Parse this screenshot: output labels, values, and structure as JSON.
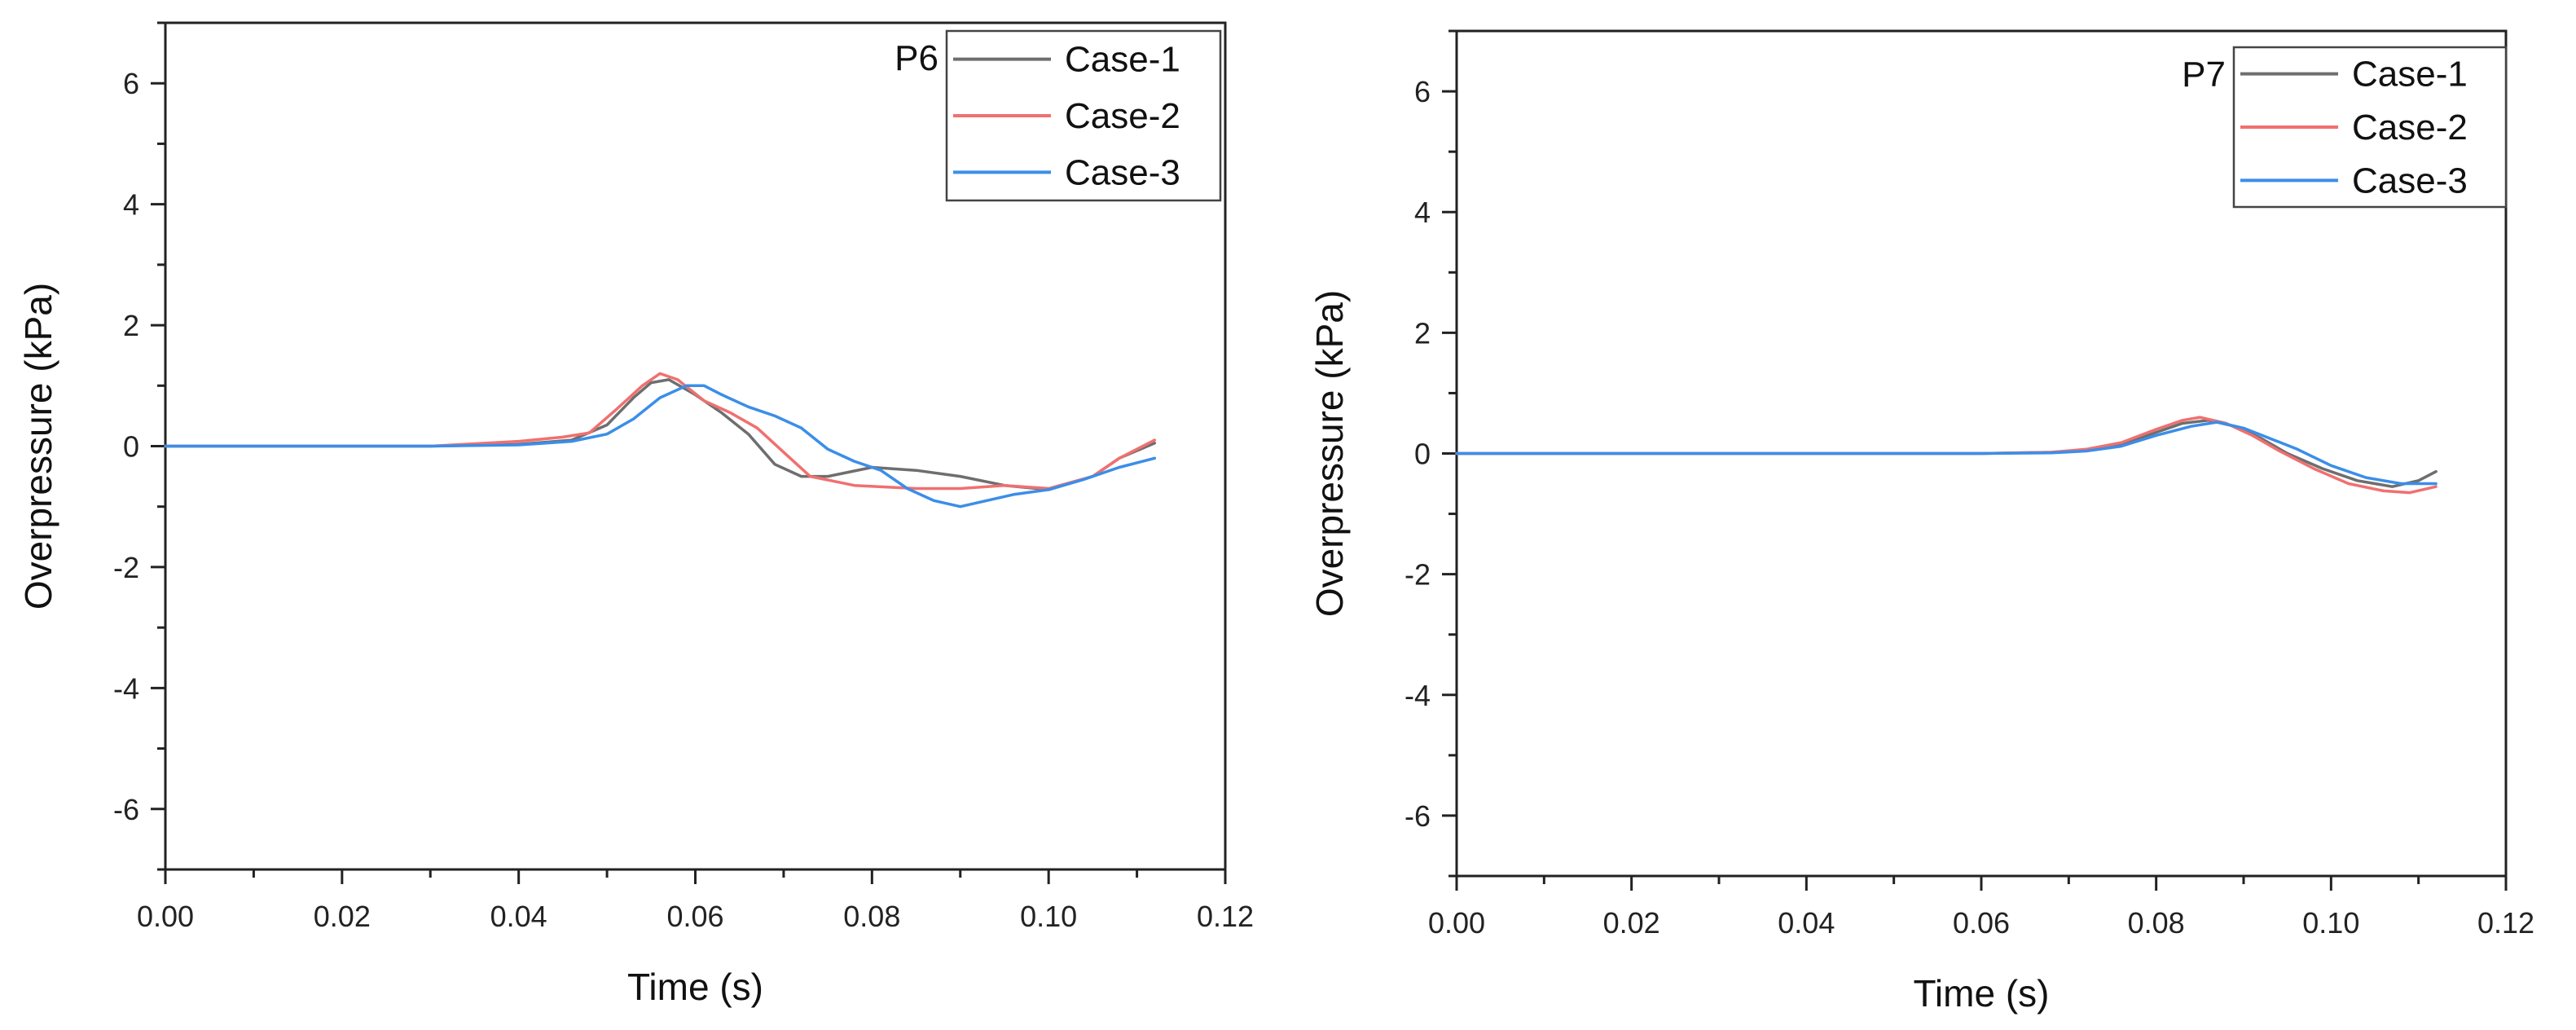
{
  "chart_data": [
    {
      "type": "line",
      "panel": "P6",
      "xlabel": "Time (s)",
      "ylabel": "Overpressure (kPa)",
      "xlim": [
        0,
        0.12
      ],
      "ylim": [
        -7,
        7
      ],
      "xticks": [
        "0.00",
        "0.02",
        "0.04",
        "0.06",
        "0.08",
        "0.10",
        "0.12"
      ],
      "yticks": [
        "6",
        "4",
        "2",
        "0",
        "-2",
        "-4",
        "-6"
      ],
      "xtick_values": [
        0,
        0.02,
        0.04,
        0.06,
        0.08,
        0.1,
        0.12
      ],
      "ytick_values": [
        6,
        4,
        2,
        0,
        -2,
        -4,
        -6
      ],
      "series": [
        {
          "name": "Case-1",
          "color": "#6e6e6e",
          "x": [
            0,
            0.03,
            0.04,
            0.046,
            0.05,
            0.053,
            0.055,
            0.057,
            0.06,
            0.063,
            0.066,
            0.069,
            0.072,
            0.075,
            0.08,
            0.085,
            0.09,
            0.095,
            0.1,
            0.105,
            0.108,
            0.112
          ],
          "y": [
            0,
            0,
            0.03,
            0.1,
            0.35,
            0.8,
            1.05,
            1.1,
            0.85,
            0.55,
            0.2,
            -0.3,
            -0.5,
            -0.5,
            -0.35,
            -0.4,
            -0.5,
            -0.65,
            -0.72,
            -0.5,
            -0.2,
            0.05
          ]
        },
        {
          "name": "Case-2",
          "color": "#f07070",
          "x": [
            0,
            0.03,
            0.04,
            0.045,
            0.048,
            0.051,
            0.054,
            0.056,
            0.058,
            0.061,
            0.064,
            0.067,
            0.07,
            0.073,
            0.078,
            0.085,
            0.09,
            0.095,
            0.1,
            0.105,
            0.108,
            0.112
          ],
          "y": [
            0,
            0,
            0.08,
            0.15,
            0.22,
            0.6,
            1.0,
            1.2,
            1.1,
            0.75,
            0.55,
            0.3,
            -0.1,
            -0.5,
            -0.65,
            -0.7,
            -0.7,
            -0.65,
            -0.7,
            -0.5,
            -0.2,
            0.1
          ]
        },
        {
          "name": "Case-3",
          "color": "#3b8ee8",
          "x": [
            0,
            0.03,
            0.04,
            0.046,
            0.05,
            0.053,
            0.056,
            0.059,
            0.061,
            0.063,
            0.066,
            0.069,
            0.072,
            0.075,
            0.078,
            0.081,
            0.084,
            0.087,
            0.09,
            0.093,
            0.096,
            0.1,
            0.104,
            0.108,
            0.112
          ],
          "y": [
            0,
            0,
            0.02,
            0.08,
            0.2,
            0.45,
            0.8,
            1.0,
            1.0,
            0.85,
            0.65,
            0.5,
            0.3,
            -0.05,
            -0.25,
            -0.4,
            -0.7,
            -0.9,
            -1.0,
            -0.9,
            -0.8,
            -0.72,
            -0.55,
            -0.35,
            -0.2
          ]
        }
      ]
    },
    {
      "type": "line",
      "panel": "P7",
      "xlabel": "Time (s)",
      "ylabel": "Overpressure (kPa)",
      "xlim": [
        0,
        0.12
      ],
      "ylim": [
        -7,
        7
      ],
      "xticks": [
        "0.00",
        "0.02",
        "0.04",
        "0.06",
        "0.08",
        "0.10",
        "0.12"
      ],
      "yticks": [
        "6",
        "4",
        "2",
        "0",
        "-2",
        "-4",
        "-6"
      ],
      "xtick_values": [
        0,
        0.02,
        0.04,
        0.06,
        0.08,
        0.1,
        0.12
      ],
      "ytick_values": [
        6,
        4,
        2,
        0,
        -2,
        -4,
        -6
      ],
      "series": [
        {
          "name": "Case-1",
          "color": "#6e6e6e",
          "x": [
            0,
            0.05,
            0.06,
            0.068,
            0.072,
            0.076,
            0.08,
            0.083,
            0.086,
            0.089,
            0.092,
            0.095,
            0.099,
            0.103,
            0.107,
            0.11,
            0.112
          ],
          "y": [
            0,
            0,
            0,
            0.02,
            0.06,
            0.15,
            0.35,
            0.5,
            0.55,
            0.45,
            0.25,
            0.0,
            -0.25,
            -0.45,
            -0.55,
            -0.45,
            -0.3
          ]
        },
        {
          "name": "Case-2",
          "color": "#f07070",
          "x": [
            0,
            0.05,
            0.06,
            0.068,
            0.072,
            0.076,
            0.08,
            0.083,
            0.085,
            0.088,
            0.091,
            0.094,
            0.098,
            0.102,
            0.106,
            0.109,
            0.112
          ],
          "y": [
            0,
            0,
            0,
            0.02,
            0.07,
            0.18,
            0.4,
            0.55,
            0.6,
            0.5,
            0.3,
            0.05,
            -0.25,
            -0.5,
            -0.62,
            -0.65,
            -0.55
          ]
        },
        {
          "name": "Case-3",
          "color": "#3b8ee8",
          "x": [
            0,
            0.05,
            0.06,
            0.068,
            0.072,
            0.076,
            0.08,
            0.084,
            0.087,
            0.09,
            0.093,
            0.096,
            0.1,
            0.104,
            0.108,
            0.112
          ],
          "y": [
            0,
            0,
            0,
            0.01,
            0.04,
            0.12,
            0.3,
            0.45,
            0.52,
            0.42,
            0.25,
            0.08,
            -0.2,
            -0.4,
            -0.5,
            -0.5
          ]
        }
      ]
    }
  ]
}
